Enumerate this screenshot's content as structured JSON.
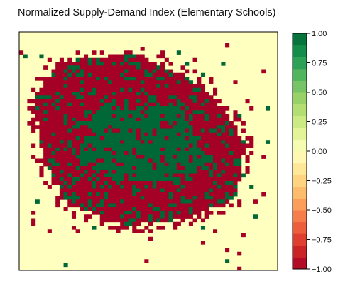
{
  "chart_data": {
    "type": "heatmap",
    "title": "Normalized Supply-Demand Index (Elementary Schools)",
    "xlabel": "",
    "ylabel": "",
    "value_range": [
      -1.0,
      1.0
    ],
    "colormap": "RdYlGn",
    "colormap_discrete_levels": 20,
    "colorbar": {
      "position": "right",
      "ticks": [
        1.0,
        0.75,
        0.5,
        0.25,
        0.0,
        -0.25,
        -0.5,
        -0.75,
        -1.0
      ],
      "tick_labels": [
        "1.00",
        "0.75",
        "0.50",
        "0.25",
        "0.00",
        "−0.25",
        "−0.50",
        "−0.75",
        "−1.00"
      ]
    },
    "axes_ticks_visible": false,
    "background_value": 0.0,
    "grid_resolution": [
      64,
      64
    ],
    "clusters": [
      {
        "label": "central core",
        "value": 1.0,
        "cells": [
          [
            20,
            20
          ],
          [
            40,
            20
          ],
          [
            48,
            36
          ],
          [
            38,
            40
          ],
          [
            24,
            40
          ],
          [
            14,
            34
          ]
        ]
      },
      {
        "label": "inner ring",
        "value": -1.0,
        "cells": [
          [
            10,
            8
          ],
          [
            28,
            6
          ],
          [
            42,
            12
          ],
          [
            50,
            20
          ],
          [
            56,
            30
          ],
          [
            54,
            44
          ],
          [
            42,
            50
          ],
          [
            26,
            52
          ],
          [
            12,
            46
          ],
          [
            6,
            34
          ],
          [
            4,
            18
          ]
        ]
      }
    ],
    "color_stops": [
      {
        "value": -1.0,
        "color": "#a50026"
      },
      {
        "value": -0.8,
        "color": "#d73027"
      },
      {
        "value": -0.6,
        "color": "#f46d43"
      },
      {
        "value": -0.4,
        "color": "#fdae61"
      },
      {
        "value": -0.2,
        "color": "#fee08b"
      },
      {
        "value": 0.0,
        "color": "#ffffbf"
      },
      {
        "value": 0.2,
        "color": "#d9ef8b"
      },
      {
        "value": 0.4,
        "color": "#a6d96a"
      },
      {
        "value": 0.6,
        "color": "#66bd63"
      },
      {
        "value": 0.8,
        "color": "#1a9850"
      },
      {
        "value": 1.0,
        "color": "#006837"
      }
    ]
  }
}
